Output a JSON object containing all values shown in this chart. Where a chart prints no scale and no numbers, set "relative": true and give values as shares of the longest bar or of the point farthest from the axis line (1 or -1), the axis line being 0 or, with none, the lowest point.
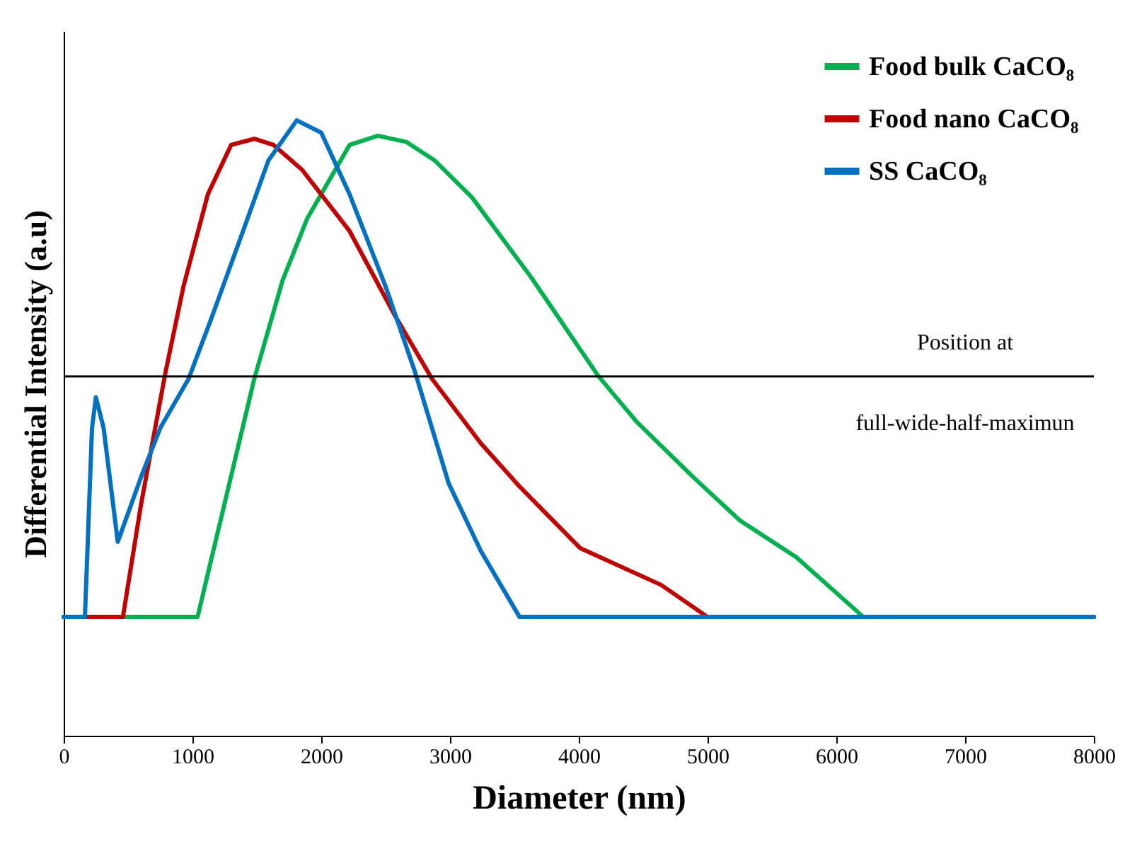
{
  "chart_data": {
    "type": "line",
    "xlabel": "Diameter (nm)",
    "ylabel": "Differential Intensity (a.u)",
    "relative": true,
    "xlim": [
      0,
      8000
    ],
    "xticks": [
      0,
      1000,
      2000,
      3000,
      4000,
      5000,
      6000,
      7000,
      8000
    ],
    "legend": "top right",
    "grid": false,
    "line_style": "solid",
    "marker": "none",
    "series": [
      {
        "name": "Food bulk CaCO₈",
        "color": "#00b050",
        "x": [
          0,
          1040,
          1150,
          1480,
          1700,
          1890,
          2220,
          2440,
          2660,
          2880,
          3170,
          3630,
          4150,
          4450,
          4890,
          5250,
          5690,
          6210,
          8000
        ],
        "values": [
          0.193,
          0.193,
          0.29,
          0.58,
          0.74,
          0.84,
          0.96,
          0.975,
          0.965,
          0.935,
          0.875,
          0.745,
          0.585,
          0.51,
          0.42,
          0.35,
          0.29,
          0.193,
          0.193
        ]
      },
      {
        "name": "Food nano CaCO₈",
        "color": "#c00000",
        "x": [
          0,
          460,
          600,
          790,
          930,
          1120,
          1300,
          1480,
          1630,
          1850,
          2220,
          2580,
          2860,
          3240,
          3540,
          4010,
          4640,
          5000,
          8000
        ],
        "values": [
          0.193,
          0.193,
          0.375,
          0.59,
          0.73,
          0.88,
          0.96,
          0.97,
          0.96,
          0.92,
          0.82,
          0.68,
          0.58,
          0.475,
          0.405,
          0.305,
          0.245,
          0.193,
          0.193
        ]
      },
      {
        "name": "SS CaCO₈",
        "color": "#0070c0",
        "x": [
          0,
          165,
          220,
          250,
          310,
          420,
          600,
          750,
          970,
          1150,
          1410,
          1590,
          1810,
          2000,
          2220,
          2500,
          2730,
          2990,
          3240,
          3540,
          8000
        ],
        "values": [
          0.193,
          0.193,
          0.5,
          0.55,
          0.5,
          0.315,
          0.42,
          0.5,
          0.58,
          0.68,
          0.83,
          0.935,
          1,
          0.98,
          0.88,
          0.73,
          0.59,
          0.41,
          0.3,
          0.193,
          0.193
        ]
      }
    ],
    "ref_lines": [
      {
        "axis": "y",
        "value": 0.584,
        "color": "#000000"
      }
    ],
    "annotations": [
      "Position at",
      "full-wide-half-maximun"
    ]
  }
}
